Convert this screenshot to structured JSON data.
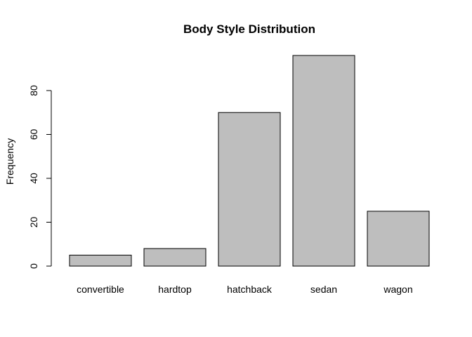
{
  "chart_data": {
    "type": "bar",
    "title": "Body Style Distribution",
    "xlabel": "",
    "ylabel": "Frequency",
    "categories": [
      "convertible",
      "hardtop",
      "hatchback",
      "sedan",
      "wagon"
    ],
    "values": [
      5,
      8,
      70,
      96,
      25
    ],
    "ylim": [
      0,
      100
    ],
    "yticks": [
      0,
      20,
      40,
      60,
      80
    ],
    "bar_color": "#bebebe",
    "grid": false,
    "legend": "none"
  }
}
